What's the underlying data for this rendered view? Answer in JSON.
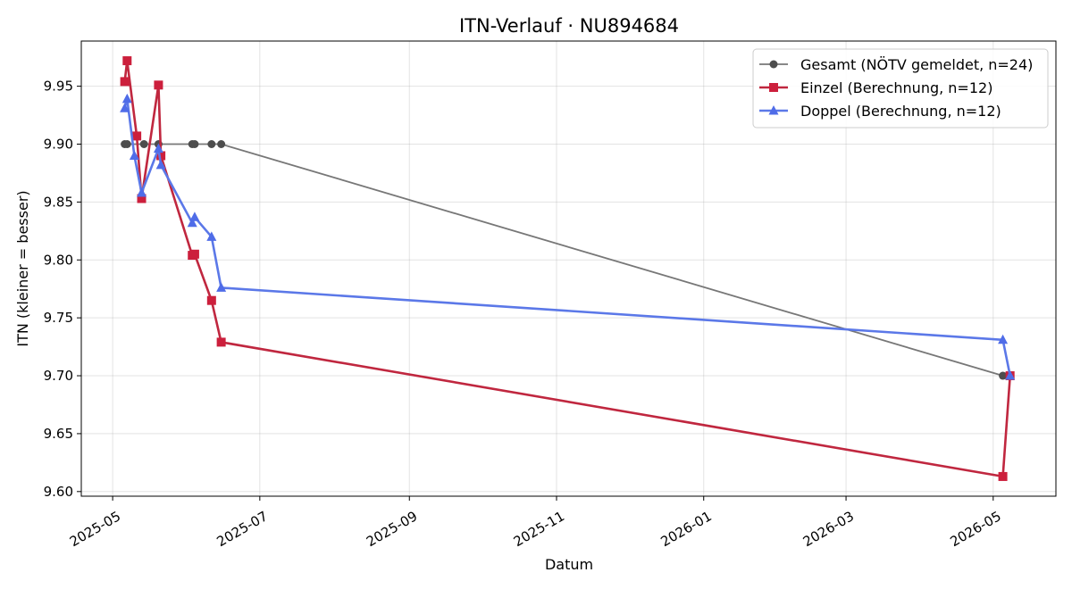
{
  "chart_data": {
    "type": "line",
    "title": "ITN-Verlauf · NU894684",
    "xlabel": "Datum",
    "ylabel": "ITN  (kleiner = besser)",
    "x_type": "date",
    "xlim": [
      "2025-04-18",
      "2026-05-27"
    ],
    "ylim": [
      9.596,
      9.989
    ],
    "x_ticks": [
      "2025-05-01",
      "2025-07-01",
      "2025-09-01",
      "2025-11-01",
      "2026-01-01",
      "2026-03-01",
      "2026-05-01"
    ],
    "x_tick_labels": [
      "2025-05",
      "2025-07",
      "2025-09",
      "2025-11",
      "2026-01",
      "2026-03",
      "2026-05"
    ],
    "y_ticks": [
      9.6,
      9.65,
      9.7,
      9.75,
      9.8,
      9.85,
      9.9,
      9.95
    ],
    "y_tick_labels": [
      "9.60",
      "9.65",
      "9.70",
      "9.75",
      "9.80",
      "9.85",
      "9.90",
      "9.95"
    ],
    "grid": true,
    "legend_position": "top-right",
    "series": [
      {
        "name": "Gesamt (NÖTV gemeldet, n=24)",
        "color": "#777777",
        "marker_color": "#4d4d4d",
        "marker": "circle",
        "points": [
          {
            "x": "2025-05-06",
            "y": 9.9
          },
          {
            "x": "2025-05-07",
            "y": 9.9
          },
          {
            "x": "2025-05-14",
            "y": 9.9
          },
          {
            "x": "2025-05-20",
            "y": 9.9
          },
          {
            "x": "2025-06-03",
            "y": 9.9
          },
          {
            "x": "2025-06-04",
            "y": 9.9
          },
          {
            "x": "2025-06-11",
            "y": 9.9
          },
          {
            "x": "2025-06-15",
            "y": 9.9
          },
          {
            "x": "2026-05-05",
            "y": 9.7
          },
          {
            "x": "2026-05-07",
            "y": 9.7
          }
        ]
      },
      {
        "name": "Einzel (Berechnung, n=12)",
        "color": "#c0273f",
        "marker_color": "#cc1f3c",
        "marker": "square",
        "points": [
          {
            "x": "2025-05-06",
            "y": 9.954
          },
          {
            "x": "2025-05-07",
            "y": 9.972
          },
          {
            "x": "2025-05-11",
            "y": 9.907
          },
          {
            "x": "2025-05-13",
            "y": 9.853
          },
          {
            "x": "2025-05-20",
            "y": 9.951
          },
          {
            "x": "2025-05-21",
            "y": 9.89
          },
          {
            "x": "2025-06-03",
            "y": 9.804
          },
          {
            "x": "2025-06-04",
            "y": 9.805
          },
          {
            "x": "2025-06-11",
            "y": 9.765
          },
          {
            "x": "2025-06-15",
            "y": 9.729
          },
          {
            "x": "2026-05-05",
            "y": 9.613
          },
          {
            "x": "2026-05-08",
            "y": 9.7
          }
        ]
      },
      {
        "name": "Doppel (Berechnung, n=12)",
        "color": "#5b78e8",
        "marker_color": "#4f6ce8",
        "marker": "triangle",
        "points": [
          {
            "x": "2025-05-06",
            "y": 9.931
          },
          {
            "x": "2025-05-07",
            "y": 9.939
          },
          {
            "x": "2025-05-10",
            "y": 9.89
          },
          {
            "x": "2025-05-13",
            "y": 9.858
          },
          {
            "x": "2025-05-20",
            "y": 9.896
          },
          {
            "x": "2025-05-21",
            "y": 9.882
          },
          {
            "x": "2025-06-03",
            "y": 9.832
          },
          {
            "x": "2025-06-04",
            "y": 9.837
          },
          {
            "x": "2025-06-11",
            "y": 9.82
          },
          {
            "x": "2025-06-15",
            "y": 9.776
          },
          {
            "x": "2026-05-05",
            "y": 9.731
          },
          {
            "x": "2026-05-08",
            "y": 9.7
          }
        ]
      }
    ]
  }
}
